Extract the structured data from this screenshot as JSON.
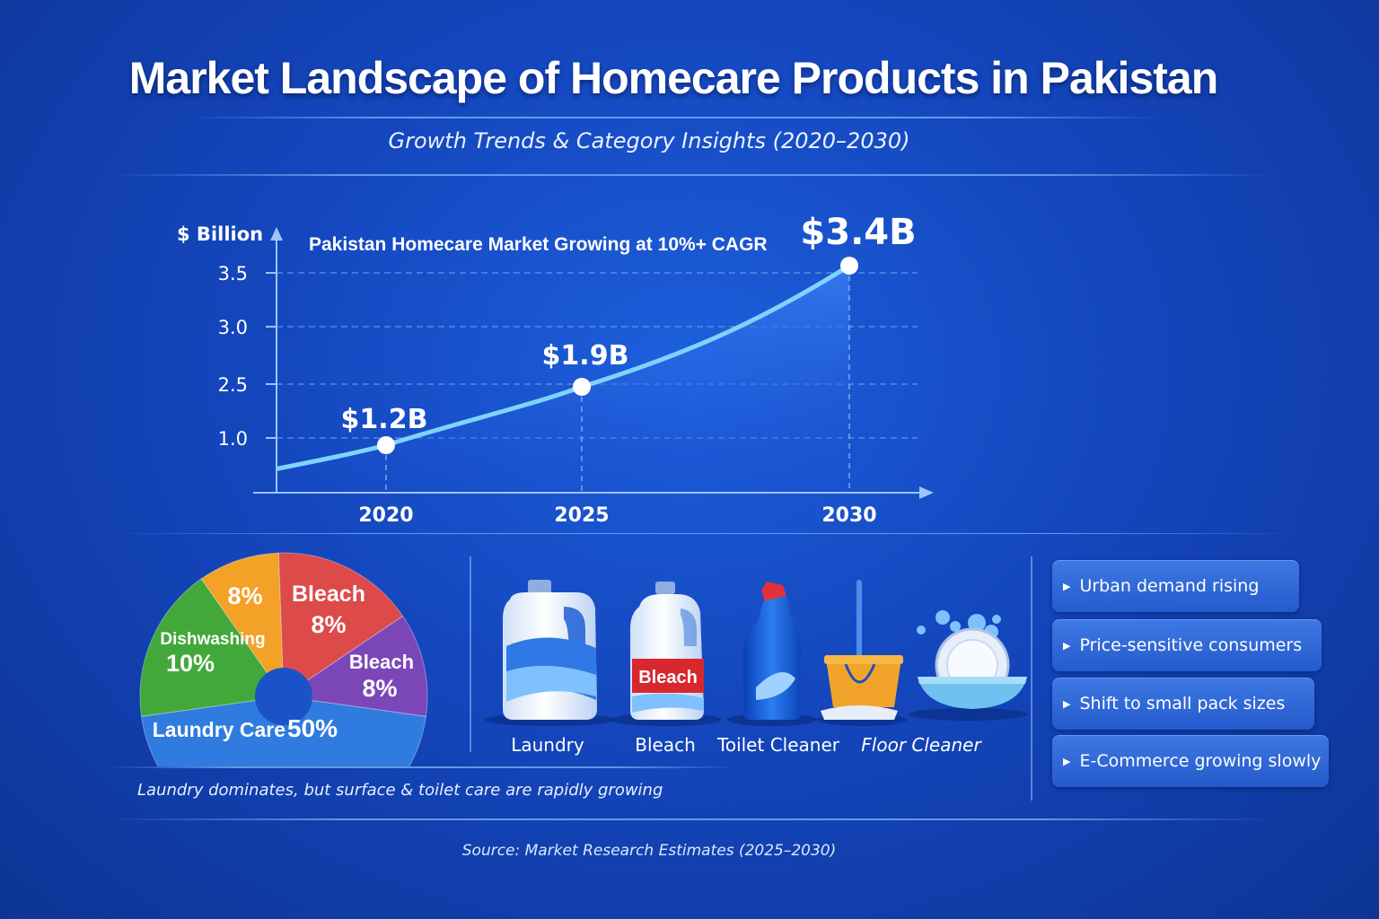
{
  "header": {
    "title": "Market Landscape of Homecare Products in Pakistan",
    "subtitle": "Growth Trends & Category Insights (2020–2030)"
  },
  "chart_data": [
    {
      "type": "area",
      "title": "Pakistan Homecare Market Growing at 10%+ CAGR",
      "ylabel": "$ Billion",
      "xlabel": "",
      "x_ticks": [
        "2020",
        "2025",
        "2030"
      ],
      "y_ticks": [
        "1.0",
        "2.5",
        "3.0",
        "3.5"
      ],
      "points": [
        {
          "x": "2020",
          "y": 1.2,
          "label": "$1.2B"
        },
        {
          "x": "2025",
          "y": 1.9,
          "label": "$1.9B"
        },
        {
          "x": "2030",
          "y": 3.4,
          "label": "$3.4B"
        }
      ],
      "grid": true,
      "colors": {
        "line": "#7fd3ff",
        "fill": "#2e6ff0",
        "point": "#ffffff"
      }
    },
    {
      "type": "pie",
      "slices": [
        {
          "name": "Laundry Care",
          "value": 50,
          "label": "50%",
          "color": "#2f7be0"
        },
        {
          "name": "Dishwashing",
          "value": 10,
          "label": "10%",
          "color": "#43a83a"
        },
        {
          "name": "",
          "value": 8,
          "label": "8%",
          "color": "#f3a127"
        },
        {
          "name": "Bleach",
          "value": 8,
          "label": "8%",
          "color": "#dc4a4a"
        },
        {
          "name": "Bleach",
          "value": 8,
          "label": "8%",
          "color": "#7b47b8"
        }
      ],
      "caption": "Laundry dominates, but surface & toilet care are rapidly growing"
    }
  ],
  "products": [
    {
      "label": "Laundry",
      "icon": "laundry-detergent-bottle-icon"
    },
    {
      "label": "Bleach",
      "icon": "bleach-bottle-icon",
      "badge": "Bleach"
    },
    {
      "label": "Toilet Cleaner",
      "icon": "toilet-cleaner-bottle-icon"
    },
    {
      "label": "Floor Cleaner",
      "icon": "mop-bucket-icon"
    },
    {
      "label": "",
      "icon": "dishes-bowl-icon"
    }
  ],
  "insights": [
    "Urban demand rising",
    "Price-sensitive consumers",
    "Shift to small pack sizes",
    "E-Commerce growing slowly"
  ],
  "footer": {
    "source": "Source: Market Research Estimates (2025–2030)"
  }
}
